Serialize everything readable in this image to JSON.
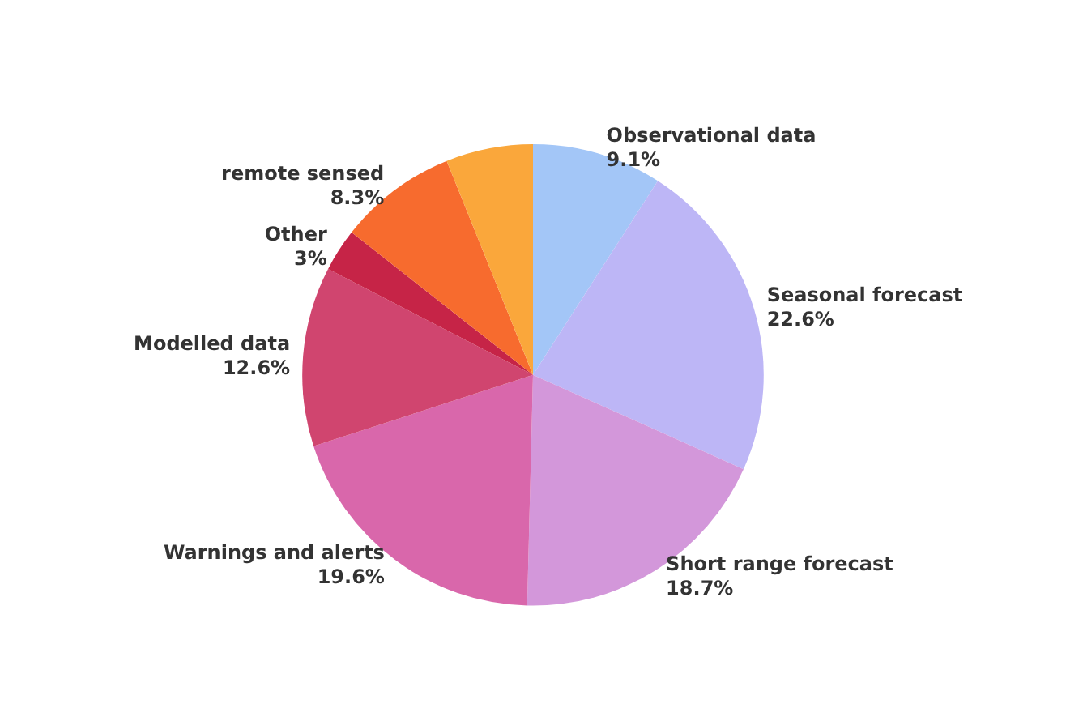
{
  "chart_data": {
    "type": "pie",
    "categories": [
      "Observational data",
      "Seasonal forecast",
      "Short range forecast",
      "Warnings and alerts",
      "Modelled data",
      "Other",
      "remote sensed",
      null
    ],
    "values": [
      9.1,
      22.6,
      18.7,
      19.6,
      12.6,
      3,
      8.3,
      6.1
    ],
    "value_labels": [
      "9.1%",
      "22.6%",
      "18.7%",
      "19.6%",
      "12.6%",
      "3%",
      "8.3%",
      null
    ],
    "colors": [
      "#a3c6f7",
      "#bdb6f6",
      "#d397da",
      "#d967ab",
      "#d0456f",
      "#c62447",
      "#f76b2e",
      "#faa73b"
    ],
    "legend": false
  }
}
